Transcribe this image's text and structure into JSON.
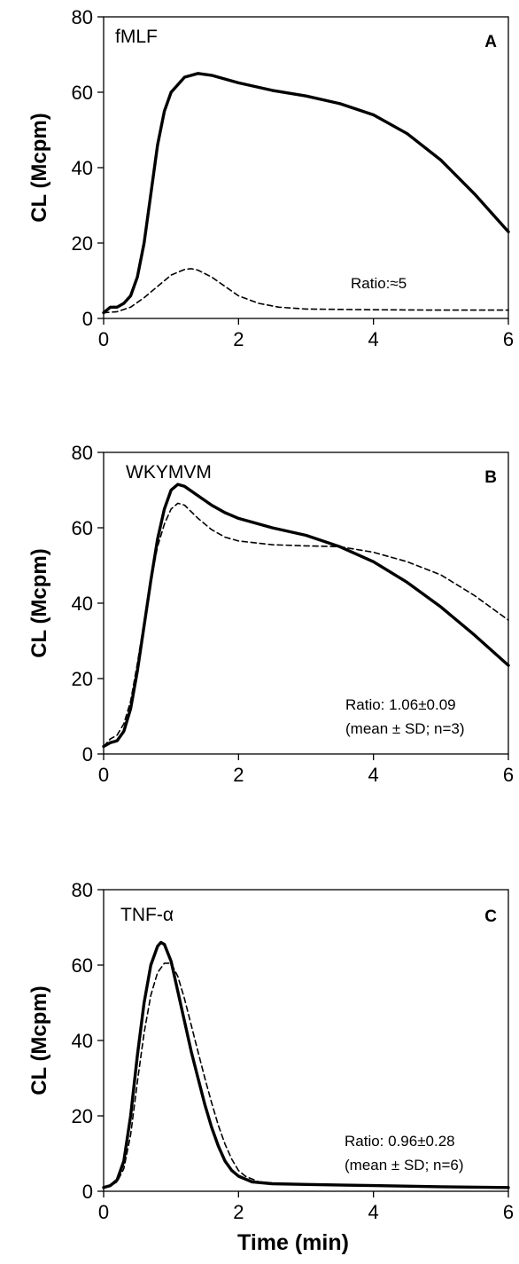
{
  "chart_data": [
    {
      "type": "line",
      "panel_letter": "A",
      "label": "fMLF",
      "ylabel": "CL (Mcpm)",
      "xlabel": "",
      "xlim": [
        0,
        6
      ],
      "ylim": [
        0,
        80
      ],
      "xticks": [
        "0",
        "2",
        "4",
        "6"
      ],
      "yticks": [
        "0",
        "20",
        "40",
        "60",
        "80"
      ],
      "grid": false,
      "annotations": [
        "Ratio:≈5"
      ],
      "series": [
        {
          "style": "solid-thick",
          "x": [
            0,
            0.1,
            0.2,
            0.3,
            0.4,
            0.5,
            0.6,
            0.7,
            0.8,
            0.9,
            1.0,
            1.2,
            1.4,
            1.6,
            1.8,
            2.0,
            2.5,
            3.0,
            3.5,
            4.0,
            4.5,
            5.0,
            5.5,
            6.0
          ],
          "y": [
            1.5,
            3,
            3,
            4,
            6,
            11,
            20,
            33,
            46,
            55,
            60,
            64,
            65,
            64.5,
            63.5,
            62.5,
            60.5,
            59,
            57,
            54,
            49,
            42,
            33,
            23
          ]
        },
        {
          "style": "dashed",
          "x": [
            0,
            0.2,
            0.4,
            0.6,
            0.8,
            1.0,
            1.2,
            1.3,
            1.4,
            1.6,
            1.8,
            2.0,
            2.3,
            2.6,
            3.0,
            4.0,
            5.0,
            6.0
          ],
          "y": [
            1.5,
            1.8,
            3,
            5.5,
            8.5,
            11.5,
            13,
            13.2,
            12.8,
            11,
            8.5,
            6,
            4,
            3,
            2.5,
            2.3,
            2.2,
            2.2
          ]
        }
      ]
    },
    {
      "type": "line",
      "panel_letter": "B",
      "label": "WKYMVM",
      "ylabel": "CL (Mcpm)",
      "xlabel": "",
      "xlim": [
        0,
        6
      ],
      "ylim": [
        0,
        80
      ],
      "xticks": [
        "0",
        "2",
        "4",
        "6"
      ],
      "yticks": [
        "0",
        "20",
        "40",
        "60",
        "80"
      ],
      "grid": false,
      "annotations": [
        "Ratio: 1.06±0.09",
        "(mean ± SD; n=3)"
      ],
      "series": [
        {
          "style": "solid-thick",
          "x": [
            0,
            0.1,
            0.2,
            0.3,
            0.4,
            0.5,
            0.6,
            0.7,
            0.8,
            0.9,
            1.0,
            1.1,
            1.2,
            1.4,
            1.6,
            1.8,
            2.0,
            2.5,
            3.0,
            3.5,
            4.0,
            4.5,
            5.0,
            5.5,
            6.0
          ],
          "y": [
            2,
            3,
            3.5,
            6,
            12,
            22,
            34,
            46,
            57,
            65,
            70,
            71.5,
            71,
            68.5,
            66,
            64,
            62.5,
            60,
            58,
            55,
            51,
            45.5,
            39,
            31.5,
            23.5
          ]
        },
        {
          "style": "dashed",
          "x": [
            0,
            0.1,
            0.2,
            0.3,
            0.4,
            0.5,
            0.6,
            0.7,
            0.8,
            0.9,
            1.0,
            1.1,
            1.2,
            1.4,
            1.6,
            1.8,
            2.0,
            2.5,
            3.0,
            3.5,
            4.0,
            4.5,
            5.0,
            5.5,
            6.0
          ],
          "y": [
            2,
            4,
            5,
            8,
            14,
            24,
            35,
            46,
            55,
            61,
            65,
            66.5,
            66,
            62.5,
            59.5,
            57.5,
            56.5,
            55.5,
            55.2,
            55,
            53.5,
            51,
            47.5,
            42,
            35.5
          ]
        }
      ]
    },
    {
      "type": "line",
      "panel_letter": "C",
      "label": "TNF-α",
      "ylabel": "CL (Mcpm)",
      "xlabel": "Time (min)",
      "xlim": [
        0,
        6
      ],
      "ylim": [
        0,
        80
      ],
      "xticks": [
        "0",
        "2",
        "4",
        "6"
      ],
      "yticks": [
        "0",
        "20",
        "40",
        "60",
        "80"
      ],
      "grid": false,
      "annotations": [
        "Ratio: 0.96±0.28",
        "(mean ± SD; n=6)"
      ],
      "series": [
        {
          "style": "solid-thick",
          "x": [
            0,
            0.1,
            0.2,
            0.3,
            0.4,
            0.5,
            0.6,
            0.7,
            0.8,
            0.85,
            0.9,
            1.0,
            1.1,
            1.2,
            1.3,
            1.4,
            1.5,
            1.6,
            1.7,
            1.8,
            1.9,
            2.0,
            2.2,
            2.5,
            3.0,
            4.0,
            5.0,
            6.0
          ],
          "y": [
            1,
            1.5,
            3,
            8,
            20,
            36,
            50,
            60,
            65,
            66,
            65.5,
            61,
            53,
            45,
            37,
            30,
            23,
            17,
            12,
            8,
            5.5,
            4,
            2.5,
            2,
            1.8,
            1.5,
            1.2,
            1
          ]
        },
        {
          "style": "dashed",
          "x": [
            0,
            0.1,
            0.2,
            0.3,
            0.4,
            0.5,
            0.6,
            0.7,
            0.8,
            0.9,
            1.0,
            1.1,
            1.2,
            1.3,
            1.4,
            1.5,
            1.6,
            1.7,
            1.8,
            1.9,
            2.0,
            2.1,
            2.3,
            2.6,
            3.0,
            4.0,
            5.0,
            6.0
          ],
          "y": [
            1,
            1.5,
            2.5,
            6,
            15,
            29,
            42,
            52,
            58,
            60.5,
            60.5,
            57,
            51,
            44,
            37,
            30,
            23.5,
            17.5,
            12.5,
            8.5,
            5.5,
            4,
            2.5,
            2,
            1.8,
            1.5,
            1.2,
            1
          ]
        }
      ]
    }
  ]
}
